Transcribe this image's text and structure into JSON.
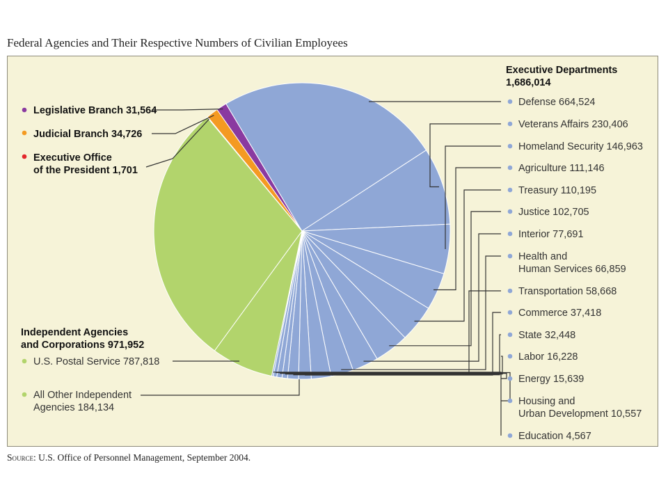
{
  "title": "Federal Agencies and Their Respective Numbers of Civilian Employees",
  "source": {
    "label": "Source",
    "text": ": U.S. Office of Personnel Management, September 2004."
  },
  "colors": {
    "executive": "#8fa7d6",
    "independent": "#b2d46c",
    "legislative": "#8a3aa0",
    "judicial": "#f49a22",
    "eop": "#e3262b"
  },
  "groups": {
    "executive": {
      "title": "Executive Departments",
      "total": "1,686,014"
    },
    "independent": {
      "title": "Independent Agencies",
      "total_line": "and Corporations 971,952"
    }
  },
  "chart_data": {
    "type": "pie",
    "title": "Federal Agencies and Their Respective Numbers of Civilian Employees",
    "slices": [
      {
        "group": "legislative",
        "lines": [
          "Legislative Branch  31,564"
        ],
        "value": 31564
      },
      {
        "group": "executive",
        "lines": [
          "Defense  664,524"
        ],
        "value": 664524
      },
      {
        "group": "executive",
        "lines": [
          "Veterans Affairs  230,406"
        ],
        "value": 230406
      },
      {
        "group": "executive",
        "lines": [
          "Homeland Security  146,963"
        ],
        "value": 146963
      },
      {
        "group": "executive",
        "lines": [
          "Agriculture  111,146"
        ],
        "value": 111146
      },
      {
        "group": "executive",
        "lines": [
          "Treasury  110,195"
        ],
        "value": 110195
      },
      {
        "group": "executive",
        "lines": [
          "Justice  102,705"
        ],
        "value": 102705
      },
      {
        "group": "executive",
        "lines": [
          "Interior  77,691"
        ],
        "value": 77691
      },
      {
        "group": "executive",
        "lines": [
          "Health and",
          "Human Services  66,859"
        ],
        "value": 66859
      },
      {
        "group": "executive",
        "lines": [
          "Transportation  58,668"
        ],
        "value": 58668
      },
      {
        "group": "executive",
        "lines": [
          "Commerce  37,418"
        ],
        "value": 37418
      },
      {
        "group": "executive",
        "lines": [
          "State  32,448"
        ],
        "value": 32448
      },
      {
        "group": "executive",
        "lines": [
          "Labor  16,228"
        ],
        "value": 16228
      },
      {
        "group": "executive",
        "lines": [
          "Energy  15,639"
        ],
        "value": 15639
      },
      {
        "group": "executive",
        "lines": [
          "Housing and",
          "Urban Development  10,557"
        ],
        "value": 10557
      },
      {
        "group": "executive",
        "lines": [
          "Education  4,567"
        ],
        "value": 4567
      },
      {
        "group": "independent",
        "lines": [
          "All Other Independent",
          "Agencies  184,134"
        ],
        "value": 184134
      },
      {
        "group": "independent",
        "lines": [
          "U.S. Postal Service  787,818"
        ],
        "value": 787818
      },
      {
        "group": "eop",
        "lines": [
          "Executive Office",
          "of the President  1,701"
        ],
        "value": 1701
      },
      {
        "group": "judicial",
        "lines": [
          "Judicial Branch  34,726"
        ],
        "value": 34726
      }
    ]
  }
}
